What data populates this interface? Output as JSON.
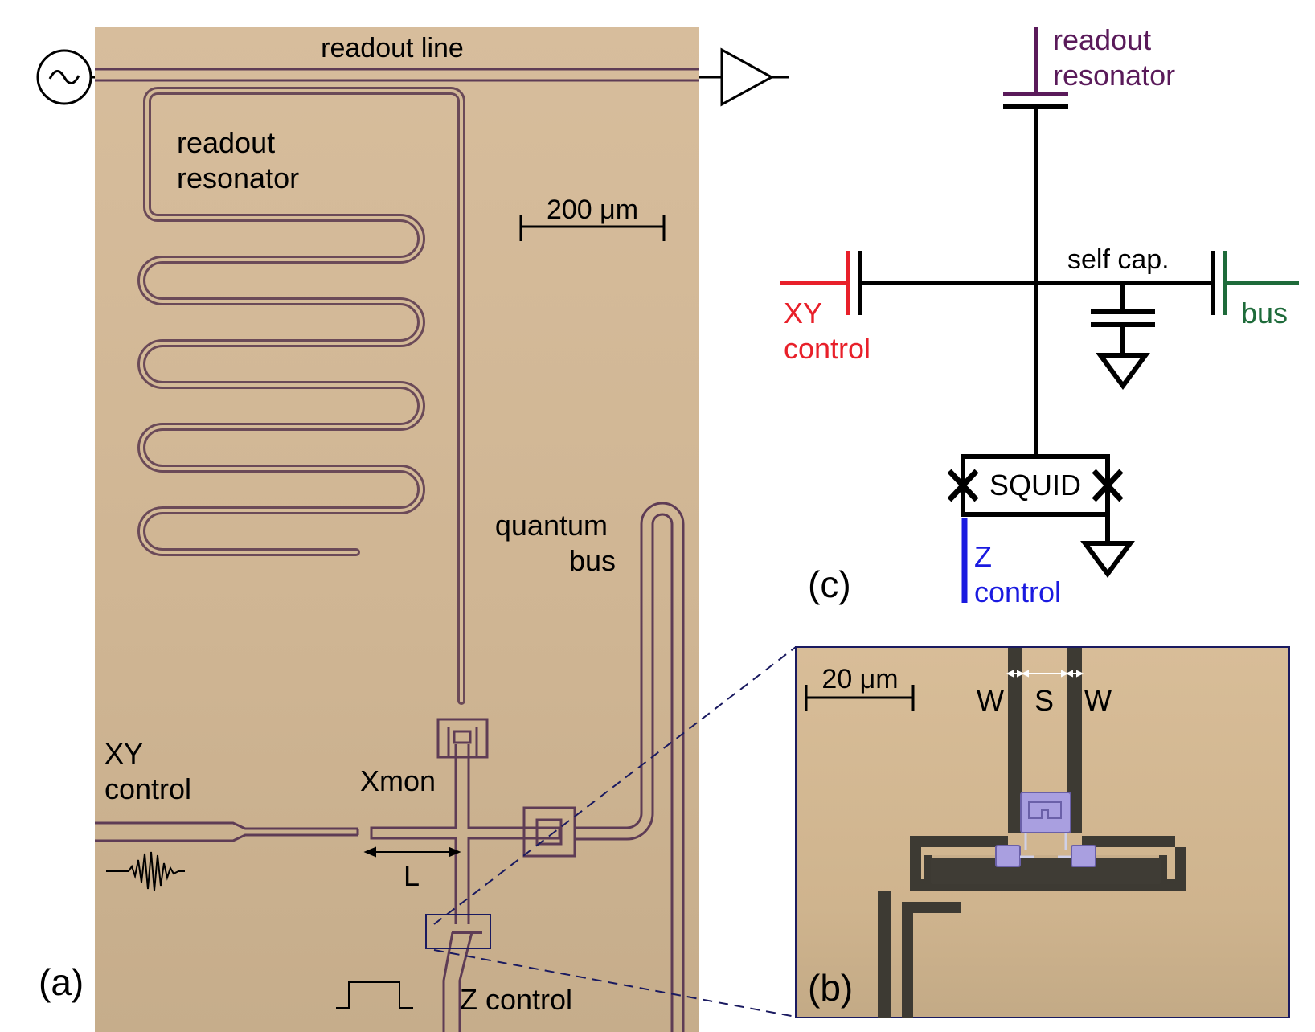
{
  "panel_a": {
    "panel_label": "(a)",
    "readout_line_label": "readout line",
    "readout_resonator_label": [
      "readout",
      "resonator"
    ],
    "scale_bar_label": "200 μm",
    "quantum_bus_label": [
      "quantum",
      "bus"
    ],
    "xy_control_label": [
      "XY",
      "control"
    ],
    "xmon_label": "Xmon",
    "length_label": "L",
    "z_control_label": "Z control"
  },
  "panel_b": {
    "panel_label": "(b)",
    "scale_bar_label": "20 μm",
    "w_left_label": "W",
    "s_label": "S",
    "w_right_label": "W"
  },
  "panel_c": {
    "panel_label": "(c)",
    "readout_resonator_label": [
      "readout",
      "resonator"
    ],
    "xy_control_label": [
      "XY",
      "control"
    ],
    "self_cap_label": "self cap.",
    "bus_label": "bus",
    "squid_label": "SQUID",
    "z_control_label": [
      "Z",
      "control"
    ]
  },
  "colors": {
    "chip_background": "#d2b896",
    "metal_trace": "#6b4a58",
    "readout": "#5a1a5a",
    "xy_control": "#e8202a",
    "bus": "#1e6b3a",
    "z_control": "#1a1ae0",
    "qubit_pad": "#a99fe0",
    "inset_frame": "#1a1a60"
  }
}
